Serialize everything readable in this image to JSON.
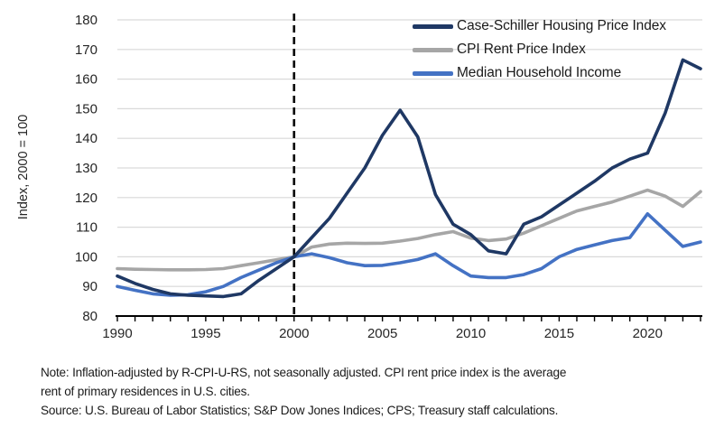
{
  "chart_data": {
    "type": "line",
    "title": "",
    "xlabel": "",
    "ylabel": "Index, 2000 = 100",
    "ylim": [
      80,
      180
    ],
    "xlim": [
      1990,
      2023
    ],
    "y_ticks": [
      80,
      90,
      100,
      110,
      120,
      130,
      140,
      150,
      160,
      170,
      180
    ],
    "x_tick_labels": [
      1990,
      1995,
      2000,
      2005,
      2010,
      2015,
      2020
    ],
    "grid": "horizontal",
    "legend_position": "top-right",
    "x": [
      1990,
      1991,
      1992,
      1993,
      1994,
      1995,
      1996,
      1997,
      1998,
      1999,
      2000,
      2001,
      2002,
      2003,
      2004,
      2005,
      2006,
      2007,
      2008,
      2009,
      2010,
      2011,
      2012,
      2013,
      2014,
      2015,
      2016,
      2017,
      2018,
      2019,
      2020,
      2021,
      2022,
      2023
    ],
    "series": [
      {
        "name": "Case-Schiller Housing Price Index",
        "color": "#1f3864",
        "values": [
          93.5,
          91,
          89,
          87.5,
          87,
          86.8,
          86.6,
          87.5,
          92,
          96,
          100,
          106.5,
          113,
          121.5,
          130,
          141,
          149.5,
          140.5,
          121,
          111,
          107.5,
          102,
          101,
          111,
          113.5,
          117.5,
          121.5,
          125.5,
          130,
          133,
          135,
          148.5,
          166.5,
          163.5
        ]
      },
      {
        "name": "CPI Rent Price Index",
        "color": "#a6a6a6",
        "values": [
          96,
          95.8,
          95.7,
          95.6,
          95.6,
          95.7,
          96,
          97,
          98,
          99,
          100,
          103.3,
          104.3,
          104.6,
          104.5,
          104.6,
          105.3,
          106.2,
          107.5,
          108.5,
          106.3,
          105.5,
          106,
          108,
          110.5,
          113,
          115.5,
          117,
          118.5,
          120.5,
          122.5,
          120.5,
          117,
          122
        ]
      },
      {
        "name": "Median Household Income",
        "color": "#4472c4",
        "values": [
          90,
          88.7,
          87.5,
          87,
          87.2,
          88.2,
          90,
          93,
          95.5,
          98,
          100,
          101,
          99.7,
          98,
          97,
          97.1,
          98,
          99.1,
          101,
          97,
          93.5,
          93,
          93,
          94,
          96,
          100,
          102.5,
          104,
          105.5,
          106.5,
          114.5,
          109,
          103.5,
          105
        ]
      }
    ],
    "vline": {
      "x": 2000,
      "style": "dashed",
      "color": "#000000"
    },
    "colors": {
      "grid": "#d9d9d9",
      "axis": "#000000",
      "tick_text": "#262626"
    }
  },
  "footer": {
    "lines": [
      "Note: Inflation-adjusted by R-CPI-U-RS, not seasonally adjusted. CPI rent price index is the average",
      "rent of primary residences in U.S. cities.",
      "Source: U.S. Bureau of Labor Statistics; S&P Dow Jones Indices; CPS; Treasury staff calculations."
    ]
  }
}
